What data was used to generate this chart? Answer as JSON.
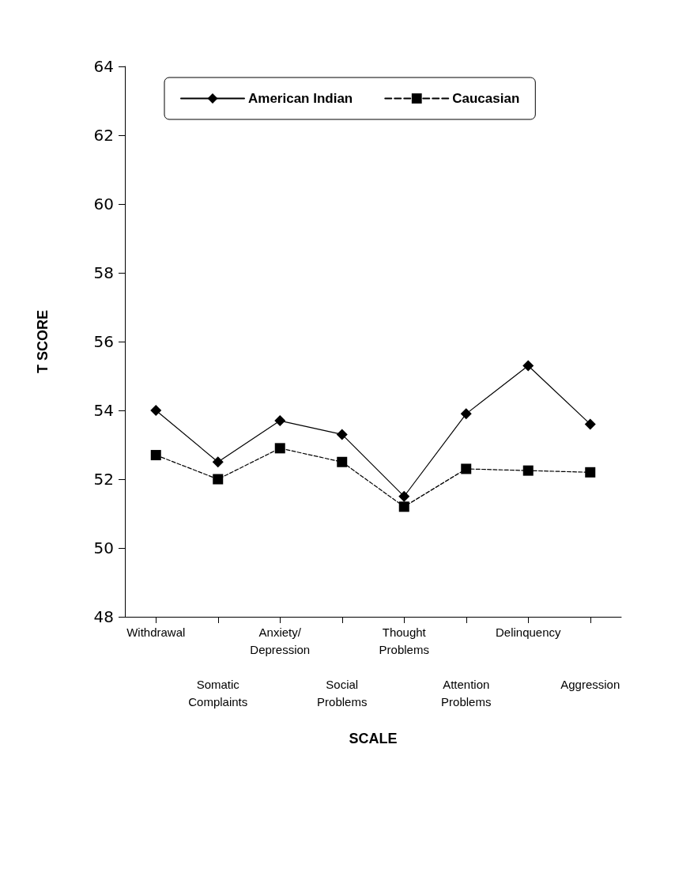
{
  "chart_data": {
    "type": "line",
    "xlabel": "SCALE",
    "ylabel": "T SCORE",
    "categories": [
      "Withdrawal",
      "Somatic\nComplaints",
      "Anxiety/\nDepression",
      "Social\nProblems",
      "Thought\nProblems",
      "Attention\nProblems",
      "Delinquency",
      "Aggression"
    ],
    "series": [
      {
        "name": "American Indian",
        "color": "#000000",
        "marker": "diamond",
        "line_style": "solid",
        "values": [
          54.0,
          52.5,
          53.7,
          53.3,
          51.5,
          53.9,
          55.3,
          53.6
        ]
      },
      {
        "name": "Caucasian",
        "color": "#000000",
        "marker": "square",
        "line_style": "dashed",
        "values": [
          52.7,
          52.0,
          52.9,
          52.5,
          51.2,
          52.3,
          52.25,
          52.2
        ]
      }
    ],
    "ylim": [
      48,
      64
    ],
    "yticks": [
      48,
      50,
      52,
      54,
      56,
      58,
      60,
      62,
      64
    ],
    "grid": false,
    "legend": "top left"
  }
}
